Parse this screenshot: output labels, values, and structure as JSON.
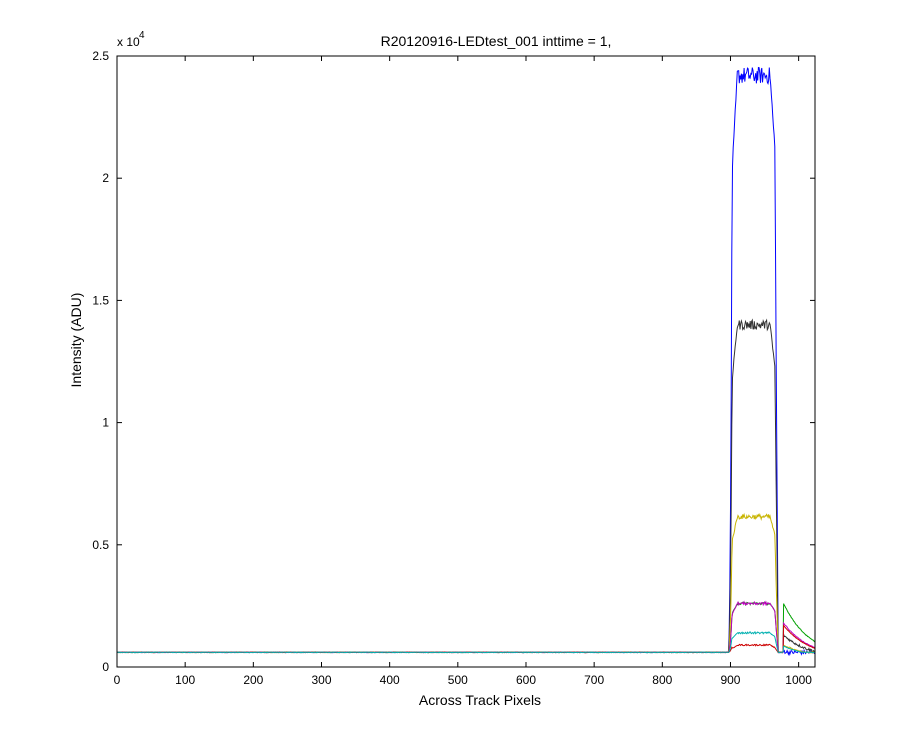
{
  "chart_data": {
    "type": "line",
    "title": "R20120916-LEDtest_001 inttime = 1,",
    "xlabel": "Across Track Pixels",
    "ylabel": "Intensity (ADU)",
    "xlim": [
      0,
      1024
    ],
    "ylim": [
      0,
      25000
    ],
    "xticks": [
      0,
      100,
      200,
      300,
      400,
      500,
      600,
      700,
      800,
      900,
      1000
    ],
    "yticks": [
      0,
      5000,
      10000,
      15000,
      20000,
      25000
    ],
    "ytick_labels": [
      "0",
      "0.5",
      "1",
      "1.5",
      "2",
      "2.5"
    ],
    "y_multiplier_base": "x 10",
    "y_multiplier_exp": "4",
    "grid": false,
    "legend": "none",
    "series": [
      {
        "color": "#0000ff",
        "baseline": 600,
        "plateau": 24200,
        "left_edge": 900,
        "right_edge": 968,
        "tail": 650,
        "noise": 350
      },
      {
        "color": "#333333",
        "baseline": 600,
        "plateau": 14000,
        "left_edge": 900,
        "right_edge": 968,
        "tail": 1300,
        "noise": 200
      },
      {
        "color": "#c8b400",
        "baseline": 600,
        "plateau": 6150,
        "left_edge": 900,
        "right_edge": 968,
        "tail": 900,
        "noise": 100
      },
      {
        "color": "#00a000",
        "baseline": 600,
        "plateau": 2600,
        "left_edge": 900,
        "right_edge": 968,
        "tail": 2600,
        "noise": 60
      },
      {
        "color": "#c000c0",
        "baseline": 600,
        "plateau": 2600,
        "left_edge": 900,
        "right_edge": 968,
        "tail": 1800,
        "noise": 60
      },
      {
        "color": "#cc0000",
        "baseline": 600,
        "plateau": 900,
        "left_edge": 900,
        "right_edge": 968,
        "tail": 1700,
        "noise": 30
      },
      {
        "color": "#00b0b0",
        "baseline": 600,
        "plateau": 1400,
        "left_edge": 900,
        "right_edge": 968,
        "tail": 850,
        "noise": 40
      }
    ]
  }
}
